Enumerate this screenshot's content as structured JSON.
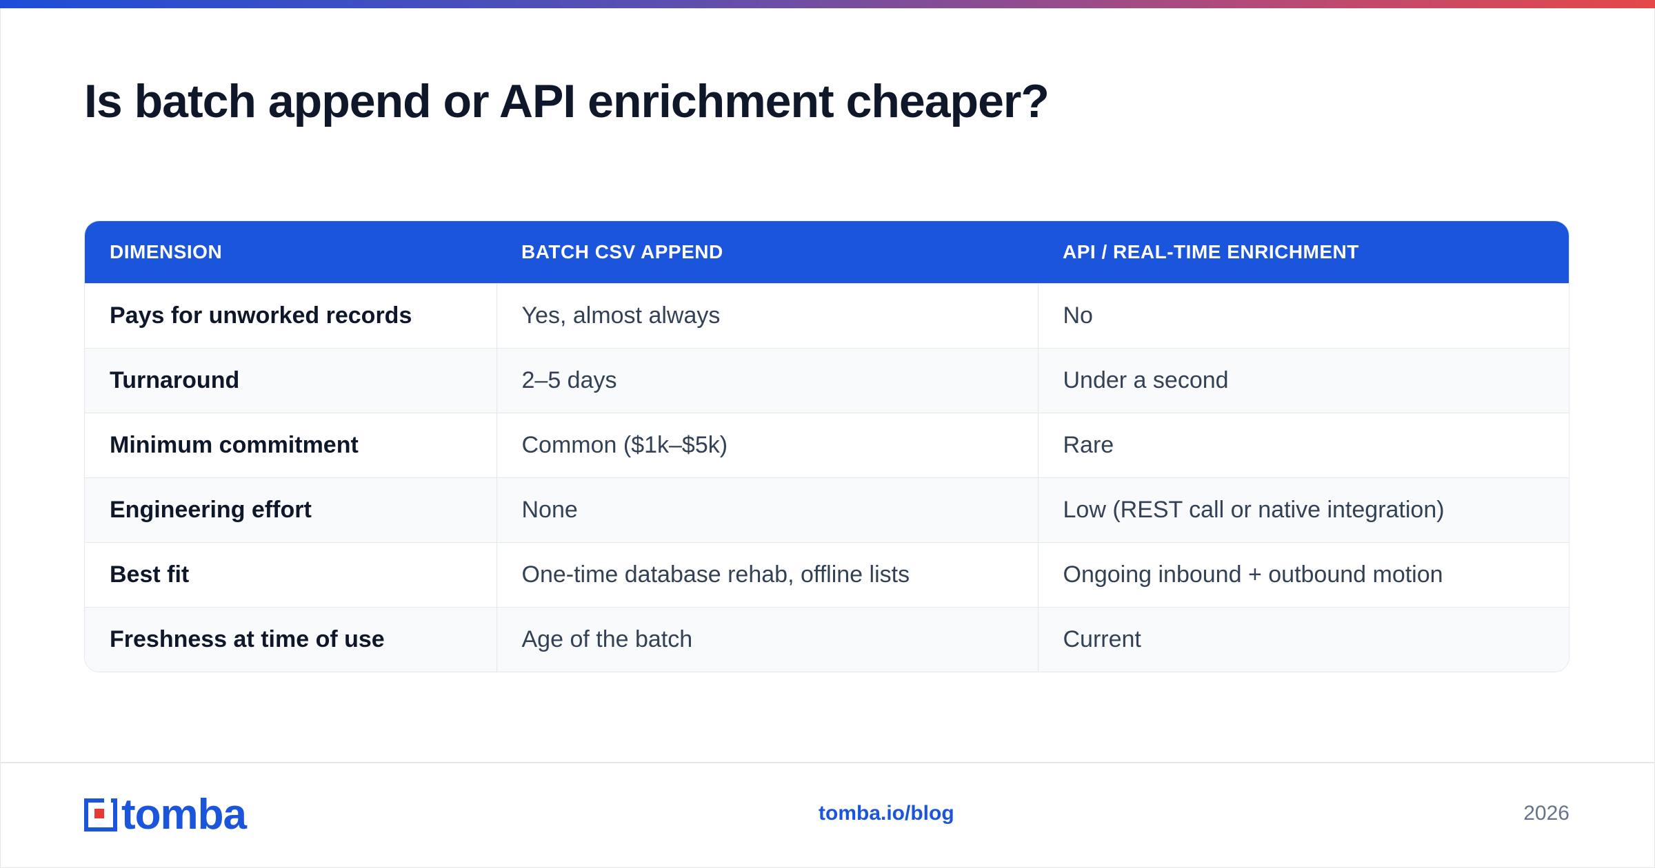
{
  "title": "Is batch append or API enrichment cheaper?",
  "table": {
    "headers": [
      "DIMENSION",
      "BATCH CSV APPEND",
      "API / REAL-TIME ENRICHMENT"
    ],
    "rows": [
      [
        "Pays for unworked records",
        "Yes, almost always",
        "No"
      ],
      [
        "Turnaround",
        "2–5 days",
        "Under a second"
      ],
      [
        "Minimum commitment",
        "Common ($1k–$5k)",
        "Rare"
      ],
      [
        "Engineering effort",
        "None",
        "Low (REST call or native integration)"
      ],
      [
        "Best fit",
        "One-time database rehab, offline lists",
        "Ongoing inbound + outbound motion"
      ],
      [
        "Freshness at time of use",
        "Age of the batch",
        "Current"
      ]
    ]
  },
  "footer": {
    "logo_text": "tomba",
    "logo_icon": "tomba-logo-mark-icon",
    "url": "tomba.io/blog",
    "year": "2026"
  },
  "colors": {
    "accent": "#1a55db",
    "top_bar_start": "#1d4ed8",
    "top_bar_end": "#e54848",
    "logo_red": "#e53935",
    "title": "#0f172a",
    "muted": "#64748b"
  }
}
